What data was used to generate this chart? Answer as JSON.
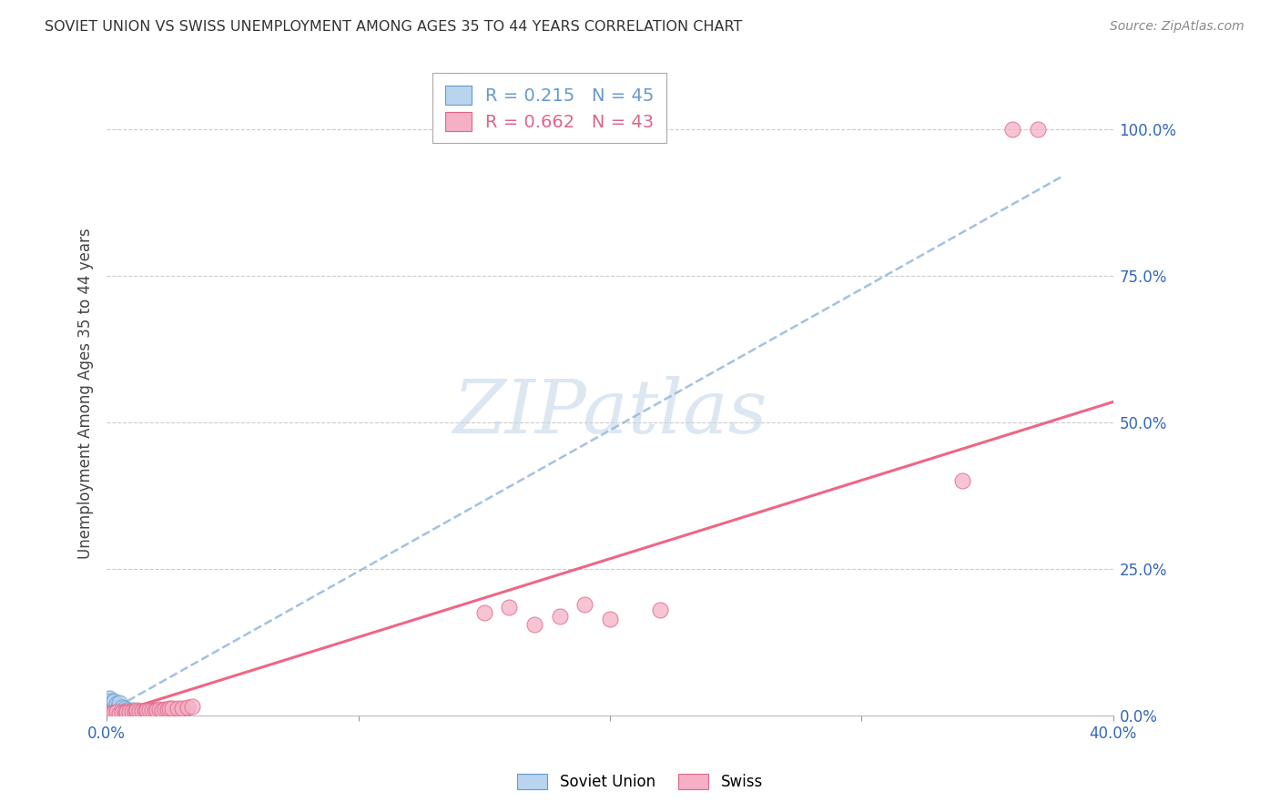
{
  "title": "SOVIET UNION VS SWISS UNEMPLOYMENT AMONG AGES 35 TO 44 YEARS CORRELATION CHART",
  "source": "Source: ZipAtlas.com",
  "ylabel": "Unemployment Among Ages 35 to 44 years",
  "xlim": [
    0.0,
    0.4
  ],
  "ylim": [
    0.0,
    1.1
  ],
  "yticks_right": [
    0.0,
    0.25,
    0.5,
    0.75,
    1.0
  ],
  "ytick_labels_right": [
    "0.0%",
    "25.0%",
    "50.0%",
    "75.0%",
    "100.0%"
  ],
  "soviet_color": "#b8d4ee",
  "swiss_color": "#f5b0c5",
  "soviet_edge_color": "#6699cc",
  "swiss_edge_color": "#dd6688",
  "soviet_line_color": "#99bbdd",
  "swiss_line_color": "#ee5577",
  "soviet_R": 0.215,
  "soviet_N": 45,
  "swiss_R": 0.662,
  "swiss_N": 43,
  "watermark": "ZIPatlas",
  "background_color": "#ffffff",
  "grid_color": "#cccccc",
  "soviet_x": [
    0.0005,
    0.0008,
    0.001,
    0.001,
    0.001,
    0.0015,
    0.0015,
    0.002,
    0.002,
    0.002,
    0.0025,
    0.003,
    0.003,
    0.003,
    0.003,
    0.004,
    0.004,
    0.004,
    0.005,
    0.005,
    0.005,
    0.005,
    0.006,
    0.006,
    0.007,
    0.007,
    0.008,
    0.008,
    0.009,
    0.01,
    0.01,
    0.011,
    0.012,
    0.013,
    0.014,
    0.015,
    0.016,
    0.017,
    0.018,
    0.02,
    0.022,
    0.024,
    0.026,
    0.028,
    0.03
  ],
  "soviet_y": [
    0.01,
    0.015,
    0.005,
    0.02,
    0.03,
    0.008,
    0.025,
    0.005,
    0.012,
    0.022,
    0.01,
    0.004,
    0.008,
    0.015,
    0.025,
    0.006,
    0.012,
    0.02,
    0.004,
    0.009,
    0.015,
    0.022,
    0.006,
    0.014,
    0.005,
    0.012,
    0.004,
    0.01,
    0.006,
    0.004,
    0.01,
    0.005,
    0.006,
    0.005,
    0.006,
    0.006,
    0.007,
    0.006,
    0.007,
    0.006,
    0.007,
    0.006,
    0.007,
    0.008,
    0.007
  ],
  "swiss_x": [
    0.001,
    0.002,
    0.003,
    0.004,
    0.005,
    0.006,
    0.007,
    0.008,
    0.008,
    0.009,
    0.01,
    0.011,
    0.012,
    0.012,
    0.013,
    0.014,
    0.015,
    0.016,
    0.016,
    0.017,
    0.018,
    0.019,
    0.02,
    0.021,
    0.022,
    0.023,
    0.024,
    0.025,
    0.026,
    0.028,
    0.03,
    0.032,
    0.034,
    0.15,
    0.16,
    0.17,
    0.18,
    0.19,
    0.2,
    0.22,
    0.34,
    0.36,
    0.37
  ],
  "swiss_y": [
    0.004,
    0.005,
    0.005,
    0.006,
    0.004,
    0.006,
    0.007,
    0.005,
    0.007,
    0.006,
    0.007,
    0.007,
    0.007,
    0.009,
    0.008,
    0.008,
    0.008,
    0.008,
    0.01,
    0.009,
    0.009,
    0.01,
    0.01,
    0.011,
    0.01,
    0.011,
    0.011,
    0.012,
    0.012,
    0.013,
    0.013,
    0.014,
    0.015,
    0.175,
    0.185,
    0.155,
    0.17,
    0.19,
    0.165,
    0.18,
    0.4,
    1.0,
    1.0
  ],
  "sov_line_x": [
    0.0,
    0.38
  ],
  "sov_line_y": [
    0.005,
    0.92
  ],
  "swiss_line_x": [
    0.0,
    0.4
  ],
  "swiss_line_y": [
    0.0,
    0.535
  ]
}
